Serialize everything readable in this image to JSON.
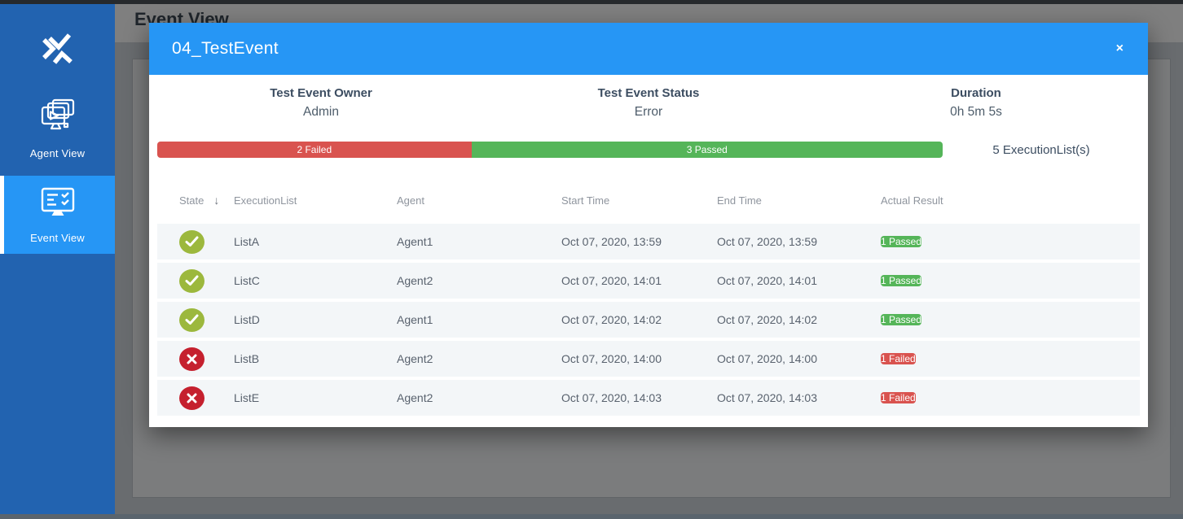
{
  "page": {
    "title": "Event View"
  },
  "sidebar": {
    "items": [
      {
        "label": "Agent View",
        "active": false
      },
      {
        "label": "Event View",
        "active": true
      }
    ]
  },
  "modal": {
    "title": "04_TestEvent",
    "close_label": "×",
    "info": [
      {
        "label": "Test Event Owner",
        "value": "Admin"
      },
      {
        "label": "Test Event Status",
        "value": "Error"
      },
      {
        "label": "Duration",
        "value": "0h 5m 5s"
      }
    ],
    "progress": {
      "failed_label": "2 Failed",
      "passed_label": "3 Passed",
      "failed_count": 2,
      "passed_count": 3,
      "failed_pct": 40,
      "passed_pct": 60,
      "summary": "5 ExecutionList(s)"
    },
    "table": {
      "columns": [
        "State",
        "ExecutionList",
        "Agent",
        "Start Time",
        "End Time",
        "Actual Result"
      ],
      "sort_icon": "↓",
      "rows": [
        {
          "state": "passed",
          "list": "ListA",
          "agent": "Agent1",
          "start": "Oct 07, 2020, 13:59",
          "end": "Oct 07, 2020, 13:59",
          "result": "1 Passed"
        },
        {
          "state": "passed",
          "list": "ListC",
          "agent": "Agent2",
          "start": "Oct 07, 2020, 14:01",
          "end": "Oct 07, 2020, 14:01",
          "result": "1 Passed"
        },
        {
          "state": "passed",
          "list": "ListD",
          "agent": "Agent1",
          "start": "Oct 07, 2020, 14:02",
          "end": "Oct 07, 2020, 14:02",
          "result": "1 Passed"
        },
        {
          "state": "failed",
          "list": "ListB",
          "agent": "Agent2",
          "start": "Oct 07, 2020, 14:00",
          "end": "Oct 07, 2020, 14:00",
          "result": "1 Failed"
        },
        {
          "state": "failed",
          "list": "ListE",
          "agent": "Agent2",
          "start": "Oct 07, 2020, 14:03",
          "end": "Oct 07, 2020, 14:03",
          "result": "1 Failed"
        }
      ]
    }
  },
  "colors": {
    "sidebar_blue": "#2263b0",
    "accent_blue": "#2696f5",
    "passed_green": "#55b559",
    "failed_red": "#d9534f",
    "state_passed_circle": "#9cb83d",
    "state_failed_circle": "#c5202e"
  }
}
